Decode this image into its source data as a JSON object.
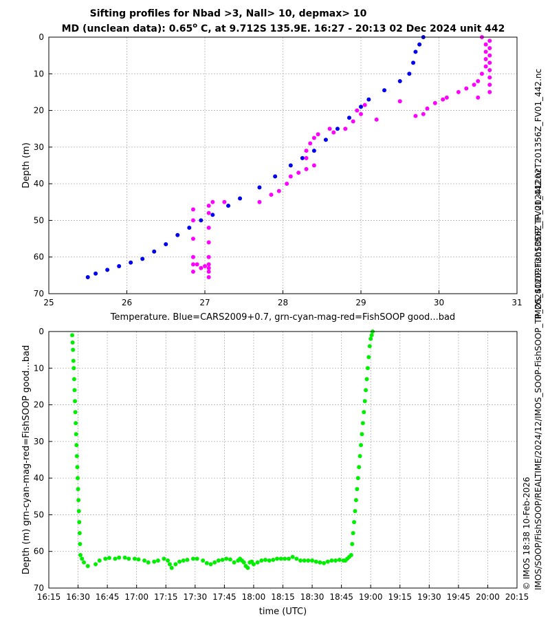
{
  "title_line1": "Sifting profiles for Nbad >3, Nall> 10, depmax> 10",
  "title_line2_prefix": "MD (unclean data): 0.65",
  "title_line2_sup": "o",
  "title_line2_suffix": " C, at 9.712S 135.9E. 16:27 - 20:13 02 Dec 2024 unit 442",
  "side_text_right": "IMOS_SOOP-FishSOOP_TP_20241202T201356Z_FV01_442.nc",
  "side_text_bottom_1": "© IMOS 18:38 10-Feb-2026",
  "side_text_bottom_2": "IMOS/SOOP/FishSOOP/REALTIME/2024/12/IMOS_SOOP-FishSOOP_TP_20241202T201356Z_FV01_442.nc",
  "colors": {
    "cars": "#0000ee",
    "bad": "#ff00ff",
    "good": "#00ee00",
    "grid": "#b0b0b0"
  },
  "chart_data": [
    {
      "type": "scatter",
      "title": "",
      "xlabel": "Temperature. Blue=CARS2009+0.7, grn-cyan-mag-red=FishSOOP good...bad",
      "ylabel": "Depth (m)",
      "xlim": [
        25,
        31
      ],
      "ylim": [
        70,
        0
      ],
      "xticks": [
        "25",
        "26",
        "27",
        "28",
        "29",
        "30",
        "31"
      ],
      "yticks": [
        "0",
        "10",
        "20",
        "30",
        "40",
        "50",
        "60",
        "70"
      ],
      "grid": true,
      "series": [
        {
          "name": "CARS2009+0.7",
          "color": "#0000ee",
          "points": [
            [
              29.8,
              0
            ],
            [
              29.75,
              2
            ],
            [
              29.7,
              4
            ],
            [
              29.67,
              7
            ],
            [
              29.62,
              10
            ],
            [
              29.5,
              12
            ],
            [
              29.3,
              14.5
            ],
            [
              29.1,
              17
            ],
            [
              29.0,
              19
            ],
            [
              28.85,
              22
            ],
            [
              28.7,
              25
            ],
            [
              28.55,
              28
            ],
            [
              28.4,
              31
            ],
            [
              28.25,
              33
            ],
            [
              28.1,
              35
            ],
            [
              27.9,
              38
            ],
            [
              27.7,
              41
            ],
            [
              27.45,
              44
            ],
            [
              27.3,
              46
            ],
            [
              27.1,
              48.5
            ],
            [
              26.95,
              50
            ],
            [
              26.8,
              52
            ],
            [
              26.65,
              54
            ],
            [
              26.5,
              56.5
            ],
            [
              26.35,
              58.5
            ],
            [
              26.2,
              60.5
            ],
            [
              26.05,
              61.5
            ],
            [
              25.9,
              62.5
            ],
            [
              25.75,
              63.5
            ],
            [
              25.6,
              64.5
            ],
            [
              25.5,
              65.5
            ]
          ]
        },
        {
          "name": "FishSOOP bad (magenta)",
          "color": "#ff00ff",
          "points": [
            [
              30.55,
              0
            ],
            [
              30.6,
              2
            ],
            [
              30.6,
              4
            ],
            [
              30.6,
              6
            ],
            [
              30.6,
              8
            ],
            [
              30.55,
              10
            ],
            [
              30.5,
              12
            ],
            [
              30.45,
              13
            ],
            [
              30.35,
              14
            ],
            [
              30.25,
              15
            ],
            [
              30.1,
              16.5
            ],
            [
              30.05,
              17
            ],
            [
              29.95,
              18
            ],
            [
              29.85,
              19.5
            ],
            [
              29.8,
              21
            ],
            [
              29.7,
              21.5
            ],
            [
              29.5,
              17.5
            ],
            [
              29.2,
              22.5
            ],
            [
              29.05,
              18.5
            ],
            [
              29.0,
              21
            ],
            [
              28.95,
              20
            ],
            [
              28.9,
              23
            ],
            [
              28.8,
              25
            ],
            [
              28.65,
              26
            ],
            [
              28.6,
              25
            ],
            [
              28.45,
              26.5
            ],
            [
              28.4,
              27.5
            ],
            [
              28.35,
              29
            ],
            [
              28.3,
              31
            ],
            [
              28.3,
              33
            ],
            [
              28.4,
              35
            ],
            [
              28.3,
              36
            ],
            [
              28.2,
              37
            ],
            [
              28.1,
              38
            ],
            [
              28.05,
              40
            ],
            [
              27.95,
              42
            ],
            [
              27.85,
              43
            ],
            [
              27.7,
              45
            ],
            [
              27.25,
              45
            ],
            [
              27.1,
              45
            ],
            [
              27.05,
              46
            ],
            [
              27.05,
              48
            ],
            [
              27.05,
              52
            ],
            [
              27.05,
              56
            ],
            [
              27.05,
              60
            ],
            [
              27.05,
              62
            ],
            [
              27.05,
              63
            ],
            [
              27.05,
              64
            ],
            [
              27.05,
              65.5
            ],
            [
              26.85,
              47
            ],
            [
              26.85,
              50
            ],
            [
              26.85,
              55
            ],
            [
              26.85,
              60
            ],
            [
              26.85,
              62
            ],
            [
              26.85,
              64
            ],
            [
              26.9,
              62
            ],
            [
              26.95,
              63
            ],
            [
              27.0,
              62.5
            ],
            [
              30.65,
              1
            ],
            [
              30.65,
              3
            ],
            [
              30.65,
              5
            ],
            [
              30.65,
              7
            ],
            [
              30.65,
              9
            ],
            [
              30.65,
              11
            ],
            [
              30.65,
              13
            ],
            [
              30.65,
              15
            ],
            [
              30.5,
              16.5
            ]
          ]
        }
      ]
    },
    {
      "type": "scatter",
      "title": "",
      "xlabel": "time (UTC)",
      "ylabel": "Depth (m) grn-cyan-mag-red=FishSOOP good...bad",
      "xlim": [
        975,
        1215
      ],
      "ylim": [
        70,
        0
      ],
      "xticks": [
        "16:15",
        "16:30",
        "16:45",
        "17:00",
        "17:15",
        "17:30",
        "17:45",
        "18:00",
        "18:15",
        "18:30",
        "18:45",
        "19:00",
        "19:15",
        "19:30",
        "19:45",
        "20:00",
        "20:15"
      ],
      "yticks": [
        "0",
        "10",
        "20",
        "30",
        "40",
        "50",
        "60",
        "70"
      ],
      "grid": true,
      "series": [
        {
          "name": "FishSOOP good (green)",
          "color": "#00ee00",
          "points": [
            [
              987,
              1
            ],
            [
              987.2,
              3
            ],
            [
              987.4,
              5
            ],
            [
              987.6,
              8
            ],
            [
              987.8,
              10
            ],
            [
              988,
              13
            ],
            [
              988.2,
              16
            ],
            [
              988.4,
              19
            ],
            [
              988.6,
              22
            ],
            [
              988.8,
              25
            ],
            [
              989,
              28
            ],
            [
              989.2,
              31
            ],
            [
              989.4,
              34
            ],
            [
              989.6,
              37
            ],
            [
              989.8,
              40
            ],
            [
              990,
              43
            ],
            [
              990.2,
              46
            ],
            [
              990.4,
              49
            ],
            [
              990.6,
              52
            ],
            [
              990.8,
              55
            ],
            [
              991,
              58
            ],
            [
              991.2,
              61
            ],
            [
              992,
              62
            ],
            [
              993,
              63
            ],
            [
              995,
              64
            ],
            [
              999,
              63.5
            ],
            [
              1001,
              62.5
            ],
            [
              1004,
              62
            ],
            [
              1006,
              61.8
            ],
            [
              1009,
              62
            ],
            [
              1011,
              61.7
            ],
            [
              1014,
              61.7
            ],
            [
              1016,
              62
            ],
            [
              1019,
              62
            ],
            [
              1021,
              62.2
            ],
            [
              1024,
              62.5
            ],
            [
              1026,
              63
            ],
            [
              1029,
              62.8
            ],
            [
              1031,
              62.5
            ],
            [
              1034,
              62
            ],
            [
              1036,
              62.5
            ],
            [
              1037,
              63.5
            ],
            [
              1038,
              64.5
            ],
            [
              1040,
              63.5
            ],
            [
              1042,
              62.8
            ],
            [
              1044,
              62.5
            ],
            [
              1046,
              62.3
            ],
            [
              1049,
              62
            ],
            [
              1051,
              62
            ],
            [
              1054,
              62.5
            ],
            [
              1056,
              63.2
            ],
            [
              1058,
              63.5
            ],
            [
              1060,
              63
            ],
            [
              1062,
              62.5
            ],
            [
              1064,
              62.3
            ],
            [
              1066,
              62
            ],
            [
              1068,
              62.2
            ],
            [
              1070,
              63
            ],
            [
              1072,
              62.5
            ],
            [
              1073,
              62
            ],
            [
              1074,
              62.5
            ],
            [
              1075,
              63
            ],
            [
              1076,
              64
            ],
            [
              1077,
              64.5
            ],
            [
              1078,
              63
            ],
            [
              1079,
              62.8
            ],
            [
              1080,
              63.5
            ],
            [
              1082,
              63
            ],
            [
              1084,
              62.5
            ],
            [
              1086,
              62.3
            ],
            [
              1088,
              62.5
            ],
            [
              1090,
              62.3
            ],
            [
              1092,
              62
            ],
            [
              1094,
              62
            ],
            [
              1096,
              62
            ],
            [
              1098,
              62
            ],
            [
              1100,
              61.5
            ],
            [
              1102,
              62
            ],
            [
              1104,
              62.5
            ],
            [
              1106,
              62.5
            ],
            [
              1108,
              62.5
            ],
            [
              1110,
              62.5
            ],
            [
              1112,
              62.8
            ],
            [
              1114,
              63
            ],
            [
              1116,
              63.2
            ],
            [
              1118,
              62.8
            ],
            [
              1120,
              62.5
            ],
            [
              1122,
              62.5
            ],
            [
              1124,
              62.3
            ],
            [
              1126,
              62.5
            ],
            [
              1127,
              62.5
            ],
            [
              1128,
              62
            ],
            [
              1129,
              61.5
            ],
            [
              1130,
              61
            ],
            [
              1130.5,
              58
            ],
            [
              1131,
              55
            ],
            [
              1131.5,
              52
            ],
            [
              1132,
              49
            ],
            [
              1132.5,
              46
            ],
            [
              1133,
              43
            ],
            [
              1133.5,
              40
            ],
            [
              1134,
              37
            ],
            [
              1134.5,
              34
            ],
            [
              1135,
              31
            ],
            [
              1135.5,
              28
            ],
            [
              1136,
              25
            ],
            [
              1136.5,
              22
            ],
            [
              1137,
              19
            ],
            [
              1137.5,
              16
            ],
            [
              1138,
              13
            ],
            [
              1138.5,
              10
            ],
            [
              1139,
              7
            ],
            [
              1139.5,
              4
            ],
            [
              1140,
              2
            ],
            [
              1140.5,
              1
            ],
            [
              1141,
              0
            ]
          ]
        }
      ]
    }
  ]
}
